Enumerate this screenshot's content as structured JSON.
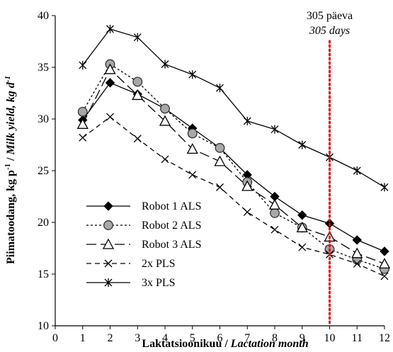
{
  "chart_data": {
    "type": "line",
    "x": [
      1,
      2,
      3,
      4,
      5,
      6,
      7,
      8,
      9,
      10,
      11,
      12
    ],
    "xlim": [
      0,
      12
    ],
    "ylim": [
      10,
      40
    ],
    "xticks": [
      "0",
      "1",
      "2",
      "3",
      "4",
      "5",
      "6",
      "7",
      "8",
      "9",
      "10",
      "11",
      "12"
    ],
    "yticks": [
      "10",
      "15",
      "20",
      "25",
      "30",
      "35",
      "40"
    ],
    "grid": false,
    "legend_position": "bottom-left",
    "xlabel": {
      "main": "Laktatsioonikuu / ",
      "italic": "Lactation month"
    },
    "ylabel": {
      "main": "Piimatoodang, kg  p",
      "sup1": "-1",
      "sep": " / ",
      "italic": "Milk yield, kg d",
      "sup2": "-1"
    },
    "annotation": {
      "line1": "305 päeva",
      "line2": "305 days",
      "x": 10,
      "color": "#e00000"
    },
    "series": [
      {
        "name": "Robot 1 ALS",
        "marker": "diamond",
        "dash": "solid",
        "values": [
          29.9,
          33.5,
          32.4,
          31.0,
          29.1,
          27.2,
          24.6,
          22.5,
          20.7,
          19.9,
          18.3,
          17.2
        ]
      },
      {
        "name": "Robot 2 ALS",
        "marker": "circle",
        "dash": "dotted",
        "values": [
          30.7,
          35.3,
          33.6,
          31.0,
          28.6,
          27.2,
          23.9,
          20.9,
          19.5,
          17.4,
          16.4,
          15.5
        ]
      },
      {
        "name": "Robot 3 ALS",
        "marker": "triangle",
        "dash": "longdash",
        "values": [
          29.5,
          34.8,
          32.3,
          29.8,
          27.1,
          25.9,
          23.5,
          21.7,
          19.5,
          18.6,
          17.0,
          16.0
        ]
      },
      {
        "name": "2x PLS",
        "marker": "x",
        "dash": "dashed",
        "values": [
          28.2,
          30.2,
          28.1,
          26.1,
          24.6,
          23.4,
          21.0,
          19.3,
          17.6,
          16.9,
          16.0,
          14.8
        ]
      },
      {
        "name": "3x PLS",
        "marker": "star",
        "dash": "solid",
        "values": [
          35.2,
          38.7,
          37.9,
          35.3,
          34.3,
          33.0,
          29.8,
          29.0,
          27.5,
          26.3,
          25.0,
          23.4
        ]
      }
    ]
  }
}
